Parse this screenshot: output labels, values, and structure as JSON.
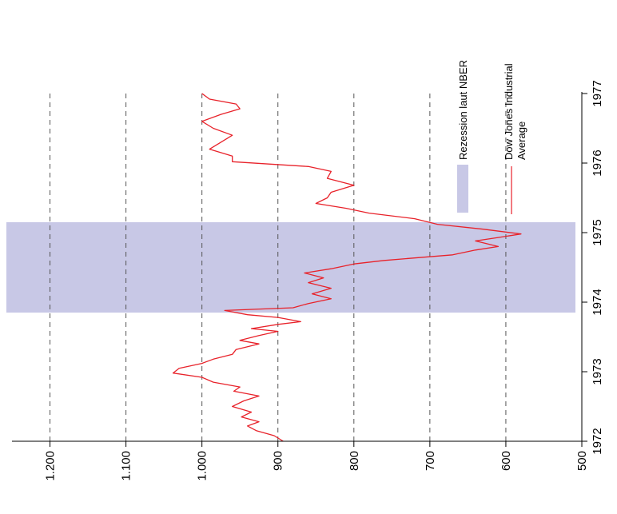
{
  "chart_data": {
    "type": "line",
    "orientation": "rotated-90-clockwise",
    "title": "",
    "xlabel": "",
    "ylabel": "",
    "x_ticks": [
      "1972",
      "1973",
      "1974",
      "1975",
      "1976",
      "1977"
    ],
    "y_ticks": [
      "500",
      "600",
      "700",
      "800",
      "900",
      "1.000",
      "1.100",
      "1.200"
    ],
    "xlim": [
      1972,
      1977
    ],
    "ylim": [
      500,
      1250
    ],
    "grid": "dashed at y ticks",
    "legend": {
      "placement": "upper-right",
      "entries": [
        {
          "label": "Rezession laut NBER",
          "kind": "band",
          "color": "#c8c8e6"
        },
        {
          "label_lines": [
            "Dow Jones Industrial",
            "Average"
          ],
          "kind": "line",
          "color": "#e8222a"
        }
      ]
    },
    "recession_band": {
      "start": 1973.85,
      "end": 1975.15,
      "color": "#c8c8e6"
    },
    "series": [
      {
        "color": "#e8222a",
        "points": [
          [
            1972.0,
            893
          ],
          [
            1972.08,
            905
          ],
          [
            1972.15,
            928
          ],
          [
            1972.22,
            940
          ],
          [
            1972.28,
            925
          ],
          [
            1972.35,
            948
          ],
          [
            1972.42,
            935
          ],
          [
            1972.5,
            960
          ],
          [
            1972.58,
            945
          ],
          [
            1972.65,
            925
          ],
          [
            1972.72,
            958
          ],
          [
            1972.78,
            950
          ],
          [
            1972.85,
            985
          ],
          [
            1972.92,
            1000
          ],
          [
            1972.98,
            1038
          ],
          [
            1973.05,
            1030
          ],
          [
            1973.12,
            1000
          ],
          [
            1973.18,
            985
          ],
          [
            1973.25,
            960
          ],
          [
            1973.32,
            955
          ],
          [
            1973.4,
            925
          ],
          [
            1973.45,
            950
          ],
          [
            1973.52,
            925
          ],
          [
            1973.58,
            900
          ],
          [
            1973.62,
            935
          ],
          [
            1973.68,
            900
          ],
          [
            1973.72,
            870
          ],
          [
            1973.78,
            900
          ],
          [
            1973.82,
            940
          ],
          [
            1973.88,
            970
          ],
          [
            1973.92,
            880
          ],
          [
            1973.98,
            860
          ],
          [
            1974.05,
            830
          ],
          [
            1974.12,
            855
          ],
          [
            1974.2,
            830
          ],
          [
            1974.28,
            860
          ],
          [
            1974.35,
            840
          ],
          [
            1974.42,
            865
          ],
          [
            1974.48,
            830
          ],
          [
            1974.55,
            800
          ],
          [
            1974.6,
            760
          ],
          [
            1974.68,
            670
          ],
          [
            1974.75,
            640
          ],
          [
            1974.8,
            610
          ],
          [
            1974.88,
            640
          ],
          [
            1974.93,
            610
          ],
          [
            1974.98,
            580
          ],
          [
            1975.05,
            630
          ],
          [
            1975.12,
            690
          ],
          [
            1975.2,
            720
          ],
          [
            1975.28,
            780
          ],
          [
            1975.35,
            810
          ],
          [
            1975.42,
            850
          ],
          [
            1975.5,
            835
          ],
          [
            1975.58,
            830
          ],
          [
            1975.68,
            800
          ],
          [
            1975.78,
            835
          ],
          [
            1975.88,
            830
          ],
          [
            1975.95,
            860
          ],
          [
            1976.02,
            960
          ],
          [
            1976.1,
            960
          ],
          [
            1976.2,
            990
          ],
          [
            1976.3,
            975
          ],
          [
            1976.4,
            960
          ],
          [
            1976.5,
            985
          ],
          [
            1976.6,
            1000
          ],
          [
            1976.7,
            975
          ],
          [
            1976.78,
            950
          ],
          [
            1976.85,
            955
          ],
          [
            1976.92,
            990
          ],
          [
            1977.0,
            1000
          ]
        ]
      }
    ]
  }
}
